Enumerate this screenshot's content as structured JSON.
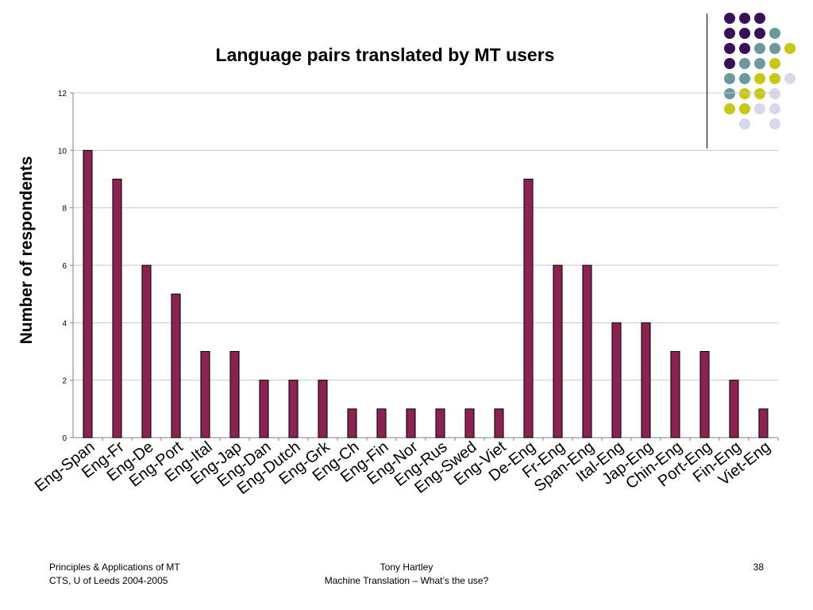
{
  "slide": {
    "footer_left_line1": "Principles & Applications of MT",
    "footer_left_line2": "CTS, U of Leeds 2004-2005",
    "footer_center_line1": "Tony Hartley",
    "footer_center_line2": "Machine Translation – What’s the use?",
    "page_number": "38",
    "dot_colors": [
      "#3a0f5a",
      "#6b9a9a",
      "#c8c810",
      "#d8d8ea"
    ]
  },
  "chart_data": {
    "type": "bar",
    "title": "Language pairs translated by MT users",
    "xlabel": "",
    "ylabel": "Number of respondents",
    "ylim": [
      0,
      12
    ],
    "yticks": [
      0,
      2,
      4,
      6,
      8,
      10,
      12
    ],
    "grid": true,
    "legend": "none",
    "bar_color": "#8b2252",
    "categories": [
      "Eng-Span",
      "Eng-Fr",
      "Eng-De",
      "Eng-Port",
      "Eng-Ital",
      "Eng-Jap",
      "Eng-Dan",
      "Eng-Dutch",
      "Eng-Grk",
      "Eng-Ch",
      "Eng-Fin",
      "Eng-Nor",
      "Eng-Rus",
      "Eng-Swed",
      "Eng-Viet",
      "De-Eng",
      "Fr-Eng",
      "Span-Eng",
      "Ital-Eng",
      "Jap-Eng",
      "Chin-Eng",
      "Port-Eng",
      "Fin-Eng",
      "Viet-Eng"
    ],
    "values": [
      10,
      9,
      6,
      5,
      3,
      3,
      2,
      2,
      2,
      1,
      1,
      1,
      1,
      1,
      1,
      9,
      6,
      6,
      4,
      4,
      3,
      3,
      2,
      1
    ]
  }
}
